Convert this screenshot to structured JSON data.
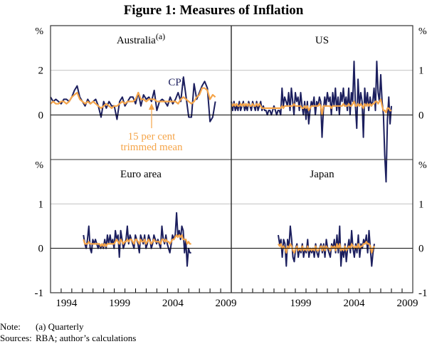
{
  "title": "Figure 1: Measures of Inflation",
  "notes": {
    "note_label": "Note:",
    "note_text": "(a) Quarterly",
    "sources_label": "Sources:",
    "sources_text": "RBA; author’s calculations"
  },
  "colors": {
    "cpi": "#1c1f5e",
    "trimmed": "#f5a54a",
    "grid": "#c8c8c8",
    "axis": "#000000",
    "annotation": "#f5a54a"
  },
  "chart_data": [
    {
      "type": "line",
      "panel": "top-left",
      "title": "Australia",
      "title_sup": "(a)",
      "unit_label": "%",
      "ylim": [
        -2,
        4
      ],
      "yticks": [
        0,
        2
      ],
      "xlim": [
        1993,
        2010
      ],
      "x_tick_labels": [
        "1994",
        "1999",
        "2004",
        "2009"
      ],
      "frequency": "quarterly",
      "series_labels": {
        "cpi": "CPI",
        "trimmed": "15 per cent trimmed mean"
      },
      "series": [
        {
          "name": "CPI",
          "start": 1993.0,
          "step": 0.25,
          "values": [
            0.8,
            0.6,
            0.7,
            0.6,
            0.5,
            0.7,
            0.7,
            0.6,
            0.8,
            1.1,
            1.3,
            0.8,
            0.6,
            0.4,
            0.7,
            0.5,
            0.6,
            0.7,
            0.4,
            -0.1,
            0.6,
            0.3,
            0.6,
            0.4,
            0.4,
            -0.2,
            0.6,
            0.8,
            0.4,
            0.6,
            0.8,
            0.8,
            0.5,
            1.0,
            0.4,
            0.9,
            0.7,
            0.8,
            0.6,
            1.1,
            0.2,
            0.6,
            0.7,
            0.6,
            0.4,
            0.8,
            0.5,
            0.7,
            1.0,
            0.6,
            1.7,
            0.8,
            -0.1,
            -0.1,
            1.4,
            0.7,
            1.0,
            1.3,
            1.5,
            1.2,
            -0.3,
            -0.1,
            0.6
          ]
        },
        {
          "name": "15 per cent trimmed mean",
          "start": 1993.0,
          "step": 0.25,
          "values": [
            0.5,
            0.6,
            0.5,
            0.5,
            0.6,
            0.6,
            0.5,
            0.6,
            0.8,
            0.9,
            1.0,
            0.7,
            0.6,
            0.5,
            0.6,
            0.5,
            0.6,
            0.5,
            0.4,
            0.3,
            0.4,
            0.5,
            0.4,
            0.3,
            0.4,
            0.4,
            0.5,
            0.6,
            0.5,
            0.6,
            0.6,
            0.6,
            0.7,
            1.0,
            0.7,
            0.7,
            0.6,
            0.7,
            0.7,
            0.7,
            0.6,
            0.6,
            0.6,
            0.6,
            0.6,
            0.6,
            0.6,
            0.6,
            0.5,
            0.7,
            0.8,
            0.7,
            0.6,
            0.5,
            0.6,
            0.8,
            0.9,
            1.2,
            1.2,
            1.1,
            0.7,
            0.9,
            0.8
          ]
        }
      ],
      "annotations": [
        {
          "text": "CPI"
        },
        {
          "text_lines": [
            "15 per cent",
            "trimmed mean"
          ]
        }
      ]
    },
    {
      "type": "line",
      "panel": "top-right",
      "title": "US",
      "unit_label": "%",
      "ylim": [
        -1,
        2
      ],
      "yticks": [
        0,
        1
      ],
      "xlim": [
        1993,
        2010
      ],
      "frequency": "monthly (sampled)",
      "series": [
        {
          "name": "CPI",
          "start": 1993.0,
          "step": 0.125,
          "values": [
            0.3,
            0.1,
            0.3,
            0.1,
            0.2,
            0.1,
            0.3,
            0.1,
            0.2,
            0.3,
            0.1,
            0.2,
            0.1,
            0.3,
            0.2,
            0.1,
            0.3,
            0.2,
            0.1,
            0.3,
            0.1,
            0.2,
            0.3,
            0.1,
            0.2,
            0.1,
            0.1,
            0.0,
            0.1,
            0.1,
            0.0,
            0.1,
            0.2,
            0.1,
            0.0,
            0.1,
            0.1,
            0.0,
            0.6,
            0.2,
            0.4,
            0.3,
            0.2,
            0.5,
            0.1,
            0.6,
            0.3,
            0.0,
            0.5,
            0.3,
            0.4,
            0.1,
            0.5,
            0.2,
            0.0,
            0.3,
            -0.1,
            0.3,
            -0.2,
            0.1,
            0.3,
            0.2,
            0.4,
            0.0,
            0.3,
            0.2,
            0.4,
            0.3,
            -0.5,
            0.1,
            0.4,
            0.2,
            0.5,
            0.3,
            0.4,
            0.0,
            0.5,
            0.2,
            0.6,
            0.1,
            0.4,
            0.0,
            0.5,
            0.3,
            0.6,
            0.2,
            0.4,
            0.1,
            0.6,
            0.0,
            0.5,
            0.3,
            1.2,
            0.2,
            -0.3,
            0.8,
            0.2,
            0.5,
            0.3,
            -0.5,
            0.6,
            0.2,
            0.5,
            0.1,
            0.4,
            0.2,
            0.3,
            0.6,
            0.1,
            1.2,
            0.5,
            0.3,
            0.9,
            0.3,
            0.0,
            -0.9,
            -1.5,
            -0.1,
            0.4,
            -0.2,
            0.2
          ]
        },
        {
          "name": "15 per cent trimmed mean",
          "start": 1993.0,
          "step": 0.125,
          "values": [
            0.25,
            0.2,
            0.25,
            0.2,
            0.25,
            0.2,
            0.2,
            0.25,
            0.2,
            0.25,
            0.2,
            0.25,
            0.2,
            0.25,
            0.2,
            0.2,
            0.25,
            0.2,
            0.2,
            0.25,
            0.2,
            0.25,
            0.2,
            0.15,
            0.15,
            0.15,
            0.15,
            0.15,
            0.15,
            0.15,
            0.15,
            0.15,
            0.15,
            0.15,
            0.15,
            0.15,
            0.15,
            0.15,
            0.2,
            0.15,
            0.2,
            0.2,
            0.2,
            0.2,
            0.2,
            0.2,
            0.2,
            0.25,
            0.2,
            0.2,
            0.2,
            0.2,
            0.2,
            0.15,
            0.15,
            0.2,
            0.15,
            0.2,
            0.1,
            0.15,
            0.2,
            0.2,
            0.2,
            0.2,
            0.2,
            0.2,
            0.25,
            0.2,
            0.0,
            0.2,
            0.2,
            0.2,
            0.2,
            0.2,
            0.2,
            0.15,
            0.2,
            0.2,
            0.2,
            0.2,
            0.2,
            0.2,
            0.2,
            0.2,
            0.25,
            0.2,
            0.2,
            0.2,
            0.25,
            0.2,
            0.2,
            0.25,
            0.3,
            0.2,
            0.2,
            0.25,
            0.2,
            0.25,
            0.2,
            0.15,
            0.25,
            0.2,
            0.25,
            0.2,
            0.25,
            0.2,
            0.25,
            0.25,
            0.3,
            0.3,
            0.25,
            0.3,
            0.35,
            0.2,
            0.1,
            0.1,
            0.05,
            0.15,
            0.15,
            0.1,
            0.1
          ]
        }
      ]
    },
    {
      "type": "line",
      "panel": "bottom-left",
      "title": "Euro area",
      "unit_label": "%",
      "ylim": [
        -1,
        2
      ],
      "yticks": [
        -1,
        0,
        1
      ],
      "xlim": [
        1993,
        2010
      ],
      "x_tick_labels": [
        "1994",
        "1999",
        "2004",
        "2009"
      ],
      "frequency": "monthly (sampled)",
      "series": [
        {
          "name": "CPI",
          "start": 1996.1,
          "step": 0.125,
          "values": [
            0.3,
            0.1,
            0.0,
            0.2,
            0.5,
            0.0,
            -0.1,
            0.2,
            0.1,
            0.2,
            0.1,
            0.0,
            0.1,
            0.0,
            0.1,
            0.0,
            0.2,
            0.0,
            0.3,
            0.1,
            0.3,
            0.1,
            0.2,
            0.0,
            0.4,
            0.2,
            0.3,
            -0.2,
            0.4,
            0.2,
            0.0,
            0.1,
            0.2,
            0.5,
            0.1,
            0.3,
            0.2,
            0.1,
            0.0,
            0.3,
            0.2,
            0.1,
            -0.1,
            0.3,
            0.2,
            0.1,
            0.3,
            0.0,
            0.1,
            0.3,
            0.2,
            0.0,
            0.1,
            0.3,
            0.2,
            0.1,
            0.2,
            0.1,
            0.0,
            0.5,
            0.2,
            0.1,
            0.3,
            0.1,
            0.0,
            -0.1,
            0.1,
            0.3,
            0.2,
            0.3,
            0.8,
            0.3,
            0.4,
            0.2,
            0.5,
            0.4,
            -0.1,
            0.2,
            -0.4,
            0.0,
            -0.1,
            -0.1
          ]
        },
        {
          "name": "15 per cent trimmed mean",
          "start": 1996.1,
          "step": 0.125,
          "values": [
            0.2,
            0.1,
            0.1,
            0.1,
            0.15,
            0.1,
            0.1,
            0.1,
            0.1,
            0.1,
            0.1,
            0.1,
            0.1,
            0.05,
            0.1,
            0.05,
            0.1,
            0.05,
            0.1,
            0.1,
            0.1,
            0.1,
            0.1,
            0.1,
            0.15,
            0.2,
            0.15,
            0.1,
            0.2,
            0.15,
            0.1,
            0.15,
            0.15,
            0.2,
            0.15,
            0.2,
            0.2,
            0.15,
            0.1,
            0.2,
            0.2,
            0.15,
            0.1,
            0.2,
            0.15,
            0.15,
            0.2,
            0.1,
            0.15,
            0.2,
            0.15,
            0.1,
            0.15,
            0.2,
            0.15,
            0.15,
            0.15,
            0.15,
            0.1,
            0.2,
            0.2,
            0.15,
            0.2,
            0.15,
            0.15,
            0.1,
            0.15,
            0.2,
            0.2,
            0.25,
            0.3,
            0.25,
            0.3,
            0.25,
            0.3,
            0.2,
            0.2,
            0.2,
            0.1,
            0.15,
            0.1,
            0.1
          ]
        }
      ]
    },
    {
      "type": "line",
      "panel": "bottom-right",
      "title": "Japan",
      "unit_label": "%",
      "ylim": [
        -1,
        2
      ],
      "yticks": [
        -1,
        0,
        1
      ],
      "xlim": [
        1993,
        2010
      ],
      "x_tick_labels": [
        "1999",
        "2004",
        "2009"
      ],
      "frequency": "monthly (sampled)",
      "series": [
        {
          "name": "CPI",
          "start": 1997.4,
          "step": 0.125,
          "values": [
            0.3,
            0.1,
            0.2,
            -0.2,
            0.2,
            0.1,
            -0.4,
            0.2,
            0.0,
            0.5,
            0.2,
            -0.2,
            -0.3,
            0.0,
            0.1,
            -0.2,
            0.0,
            -0.1,
            0.1,
            -0.2,
            0.0,
            -0.1,
            0.2,
            -0.2,
            0.0,
            -0.1,
            0.0,
            -0.2,
            0.1,
            -0.1,
            -0.2,
            0.0,
            0.1,
            -0.1,
            0.1,
            -0.2,
            0.2,
            0.0,
            -0.1,
            -0.2,
            0.1,
            0.0,
            0.2,
            -0.1,
            0.3,
            -0.1,
            0.5,
            -0.4,
            0.0,
            -0.2,
            0.1,
            -0.3,
            0.0,
            0.2,
            -0.1,
            0.4,
            0.0,
            -0.2,
            0.1,
            -0.1,
            0.3,
            -0.2,
            0.1,
            0.0,
            0.2,
            0.1,
            0.3,
            -0.1,
            0.4,
            0.0,
            -0.4,
            -0.1,
            0.1
          ]
        },
        {
          "name": "15 per cent trimmed mean",
          "start": 1997.4,
          "step": 0.125,
          "values": [
            0.1,
            0.05,
            0.1,
            0.0,
            0.05,
            0.0,
            -0.1,
            0.05,
            0.0,
            0.1,
            0.05,
            -0.05,
            -0.1,
            0.0,
            0.05,
            -0.05,
            0.0,
            -0.05,
            0.05,
            -0.05,
            0.0,
            -0.05,
            0.05,
            -0.05,
            0.0,
            -0.05,
            0.0,
            -0.05,
            0.05,
            -0.05,
            -0.05,
            0.0,
            0.05,
            -0.05,
            0.05,
            -0.05,
            0.05,
            0.0,
            0.0,
            -0.05,
            0.05,
            0.0,
            0.05,
            -0.05,
            0.1,
            0.0,
            0.1,
            -0.05,
            0.0,
            -0.05,
            0.05,
            -0.05,
            0.0,
            0.05,
            0.0,
            0.1,
            0.05,
            0.0,
            0.05,
            0.0,
            0.1,
            0.0,
            0.05,
            0.05,
            0.1,
            0.1,
            0.15,
            0.1,
            0.1,
            0.05,
            -0.1,
            0.0,
            0.05
          ]
        }
      ]
    }
  ]
}
